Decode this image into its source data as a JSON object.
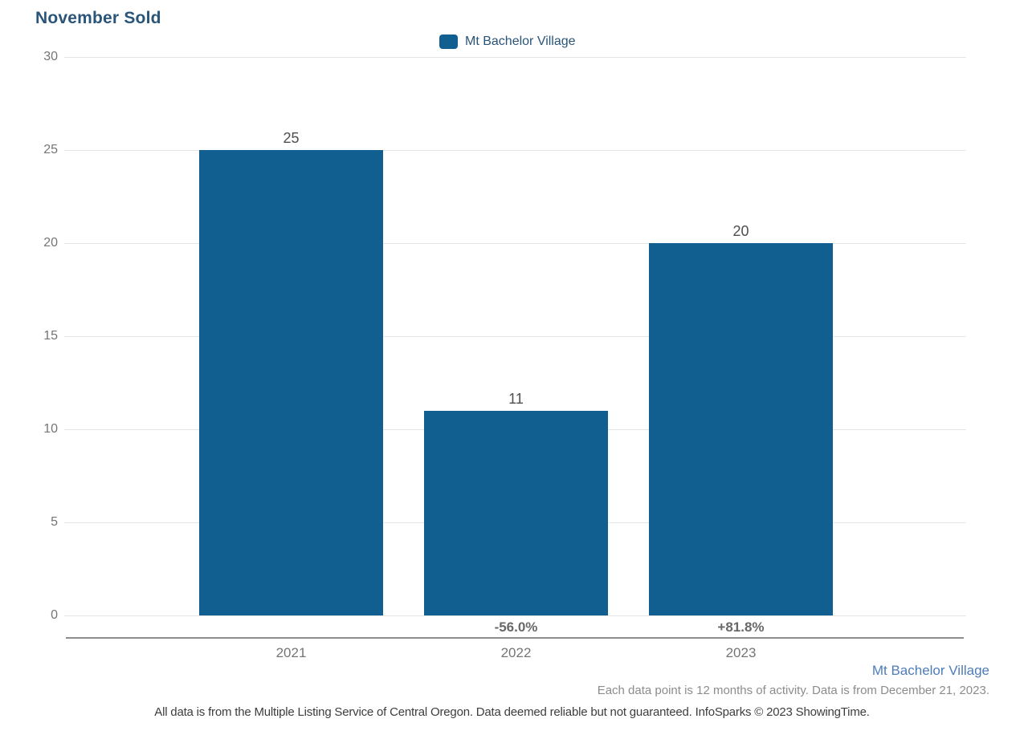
{
  "header": {
    "title": "November Sold"
  },
  "legend": {
    "label": "Mt Bachelor Village"
  },
  "chart_data": {
    "type": "bar",
    "title": "November Sold",
    "categories": [
      "2021",
      "2022",
      "2023"
    ],
    "series": [
      {
        "name": "Mt Bachelor Village",
        "values": [
          25,
          11,
          20
        ],
        "color": "#115f91"
      }
    ],
    "value_labels": [
      "25",
      "11",
      "20"
    ],
    "pct_change_labels": [
      "",
      "-56.0%",
      "+81.8%"
    ],
    "xlabel": "",
    "ylabel": "",
    "ylim": [
      0,
      30
    ],
    "yticks": [
      0,
      5,
      10,
      15,
      20,
      25,
      30
    ],
    "grid": true,
    "legend_position": "top-center"
  },
  "colors": {
    "bar": "#115f91",
    "title_text": "#2a5478",
    "footer_series_text": "#4d7db9"
  },
  "footer": {
    "series_label": "Mt Bachelor Village",
    "note_right": "Each data point is 12 months of activity. Data is from December 21, 2023.",
    "note_center": "All data is from the Multiple Listing Service of Central Oregon. Data deemed reliable but not guaranteed. InfoSparks © 2023 ShowingTime."
  }
}
